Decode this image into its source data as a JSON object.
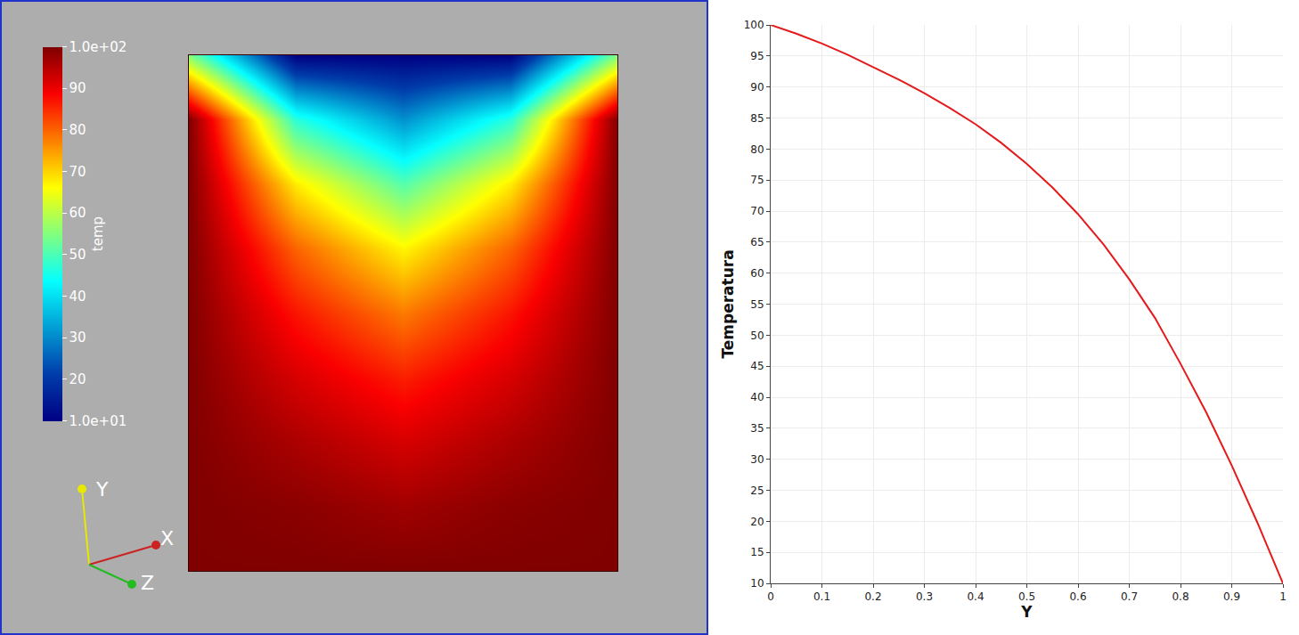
{
  "chart_data": [
    {
      "type": "heatmap",
      "x": [
        0,
        0.25,
        0.5,
        0.75,
        1
      ],
      "y": [
        0,
        0.125,
        0.25,
        0.375,
        0.5,
        0.625,
        0.75,
        0.875,
        1
      ],
      "z": [
        [
          100,
          100,
          100,
          100,
          100
        ],
        [
          100,
          99,
          97,
          99,
          100
        ],
        [
          100,
          96,
          92,
          96,
          100
        ],
        [
          100,
          92,
          86,
          92,
          100
        ],
        [
          100,
          87,
          78,
          87,
          100
        ],
        [
          100,
          80,
          67,
          80,
          100
        ],
        [
          100,
          68,
          51,
          68,
          100
        ],
        [
          100,
          47,
          31,
          47,
          100
        ],
        [
          55,
          10,
          10,
          10,
          55
        ]
      ],
      "xlim": [
        0,
        1
      ],
      "ylim": [
        0,
        1
      ],
      "tick_labels": false,
      "colorbar_title": "temp",
      "colorbar_range": [
        10,
        100
      ],
      "colorbar_ticks": [
        {
          "value": 10,
          "label": "1.0e+01"
        },
        20,
        30,
        40,
        50,
        60,
        70,
        80,
        90,
        {
          "value": 100,
          "label": "1.0e+02"
        }
      ],
      "annotations": [
        "Y",
        "X",
        "Z"
      ]
    },
    {
      "type": "line",
      "x_label": "Y",
      "y_label": "Temperatura",
      "x": [
        0,
        0.05,
        0.1,
        0.15,
        0.2,
        0.25,
        0.3,
        0.35,
        0.4,
        0.45,
        0.5,
        0.55,
        0.6,
        0.65,
        0.7,
        0.75,
        0.8,
        0.85,
        0.9,
        0.95,
        1
      ],
      "values": [
        100,
        98.6,
        97,
        95.2,
        93.2,
        91.2,
        89,
        86.6,
        84,
        81,
        77.6,
        73.8,
        69.5,
        64.6,
        59,
        52.8,
        45.4,
        37.6,
        29,
        19.8,
        10
      ],
      "color": "#e41a1c",
      "xlim": [
        0,
        1
      ],
      "xticks": [
        0,
        0.1,
        0.2,
        0.3,
        0.4,
        0.5,
        0.6,
        0.7,
        0.8,
        0.9,
        1
      ],
      "ylim": [
        10,
        100
      ],
      "yticks": [
        10,
        15,
        20,
        25,
        30,
        35,
        40,
        45,
        50,
        55,
        60,
        65,
        70,
        75,
        80,
        85,
        90,
        95,
        100
      ],
      "grid": true
    }
  ]
}
